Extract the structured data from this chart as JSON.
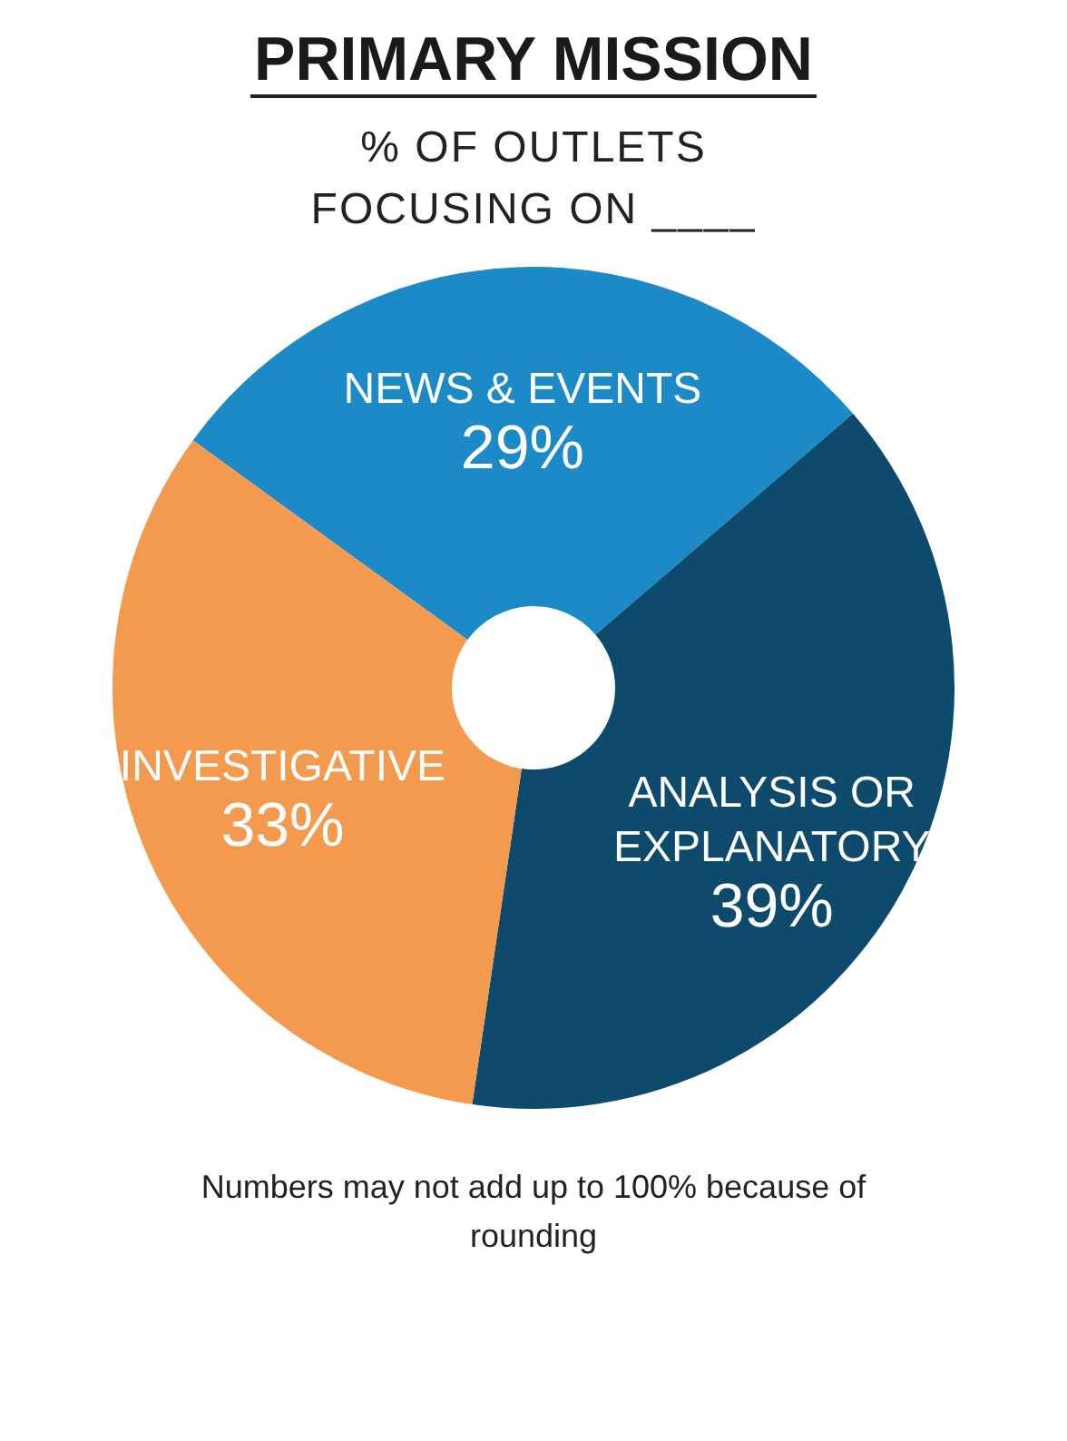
{
  "chart_data": {
    "type": "donut",
    "title": "PRIMARY MISSION",
    "subtitle": "% OF OUTLETS FOCUSING ON ____",
    "categories": [
      "NEWS & EVENTS",
      "ANALYSIS OR EXPLANATORY",
      "INVESTIGATIVE"
    ],
    "values": [
      29,
      39,
      33
    ],
    "value_labels": [
      "29%",
      "39%",
      "33%"
    ],
    "colors": [
      "#1b8ac6",
      "#0e4a6c",
      "#f39a4f"
    ],
    "legend": false,
    "annotations": [
      "Numbers may not add up to 100% because of rounding"
    ]
  }
}
